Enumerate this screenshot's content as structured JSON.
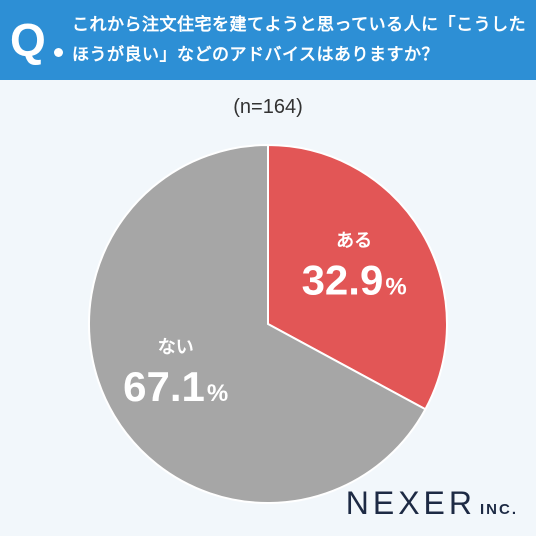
{
  "header": {
    "q_mark": "Q",
    "question": "これから注文住宅を建てようと思っている人に「こうしたほうが良い」などのアドバイスはありますか？"
  },
  "sample": "(n=164)",
  "brand": {
    "name": "NEXER",
    "suffix": "INC."
  },
  "colors": {
    "header": "#2d8fd5",
    "aru": "#e25656",
    "nai": "#a6a6a6"
  },
  "chart_data": {
    "type": "pie",
    "start_angle": "12 o'clock",
    "direction": "clockwise",
    "slices": [
      {
        "label": "ある",
        "value": 32.9,
        "value_text": "32.9",
        "unit": "%",
        "color": "#e25656"
      },
      {
        "label": "ない",
        "value": 67.1,
        "value_text": "67.1",
        "unit": "%",
        "color": "#a6a6a6"
      }
    ]
  }
}
